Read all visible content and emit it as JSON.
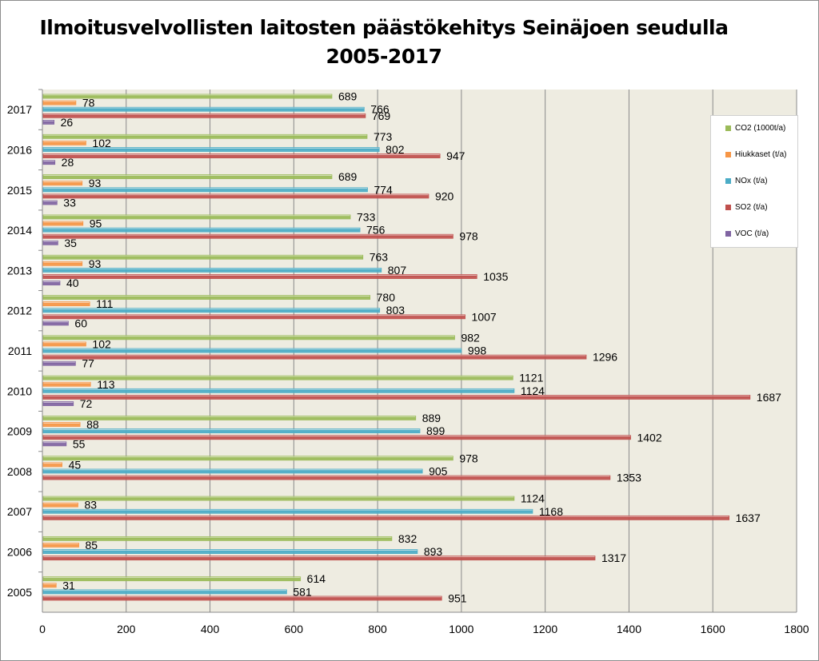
{
  "chart_data": {
    "type": "bar",
    "orientation": "horizontal",
    "title": "Ilmoitusvelvollisten laitosten päästökehitys Seinäjoen seudulla",
    "subtitle": "2005-2017",
    "categories": [
      "2005",
      "2006",
      "2007",
      "2008",
      "2009",
      "2010",
      "2011",
      "2012",
      "2013",
      "2014",
      "2015",
      "2016",
      "2017"
    ],
    "series": [
      {
        "name": "CO2 (1000t/a)",
        "color": "#9bbb59",
        "values": [
          614,
          832,
          1124,
          978,
          889,
          1121,
          982,
          780,
          763,
          733,
          689,
          773,
          689
        ]
      },
      {
        "name": "Hiukkaset (t/a)",
        "color": "#f79646",
        "values": [
          31,
          85,
          83,
          45,
          88,
          113,
          102,
          111,
          93,
          95,
          93,
          102,
          78
        ]
      },
      {
        "name": "NOx (t/a)",
        "color": "#4bacc6",
        "values": [
          581,
          893,
          1168,
          905,
          899,
          1124,
          998,
          803,
          807,
          756,
          774,
          802,
          766
        ]
      },
      {
        "name": "SO2 (t/a)",
        "color": "#c0504d",
        "values": [
          951,
          1317,
          1637,
          1353,
          1402,
          1687,
          1296,
          1007,
          1035,
          978,
          920,
          947,
          769
        ]
      },
      {
        "name": "VOC (t/a)",
        "color": "#8064a2",
        "values": [
          null,
          null,
          null,
          null,
          55,
          72,
          77,
          60,
          40,
          35,
          33,
          28,
          26
        ]
      }
    ],
    "xlim": [
      0,
      1800
    ],
    "xticks": [
      0,
      200,
      400,
      600,
      800,
      1000,
      1200,
      1400,
      1600,
      1800
    ],
    "grid": "vertical",
    "legend": "right",
    "plot_background": "#eeece1"
  }
}
